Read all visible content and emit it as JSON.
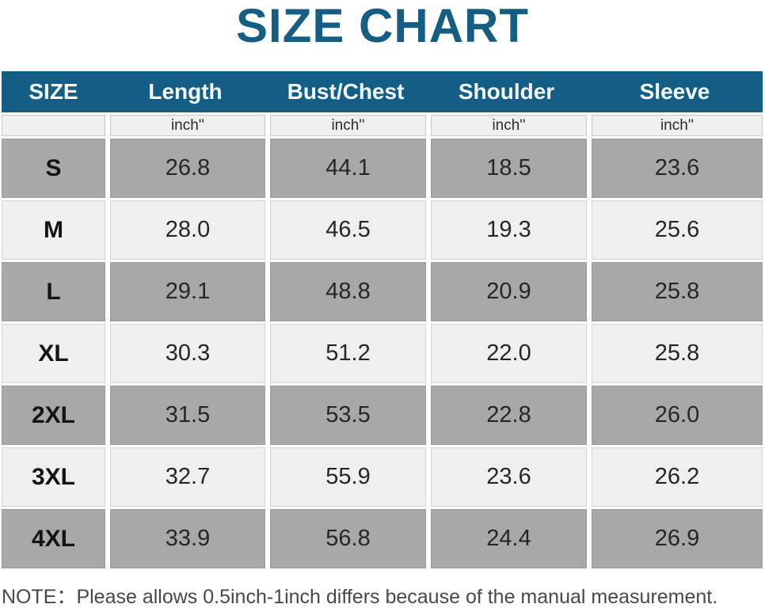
{
  "title": "SIZE CHART",
  "table": {
    "columns": [
      "SIZE",
      "Length",
      "Bust/Chest",
      "Shoulder",
      "Sleeve"
    ],
    "unit_row": [
      "",
      "inch''",
      "inch''",
      "inch''",
      "inch''"
    ],
    "rows": [
      {
        "size": "S",
        "length": "26.8",
        "bust": "44.1",
        "shoulder": "18.5",
        "sleeve": "23.6"
      },
      {
        "size": "M",
        "length": "28.0",
        "bust": "46.5",
        "shoulder": "19.3",
        "sleeve": "25.6"
      },
      {
        "size": "L",
        "length": "29.1",
        "bust": "48.8",
        "shoulder": "20.9",
        "sleeve": "25.8"
      },
      {
        "size": "XL",
        "length": "30.3",
        "bust": "51.2",
        "shoulder": "22.0",
        "sleeve": "25.8"
      },
      {
        "size": "2XL",
        "length": "31.5",
        "bust": "53.5",
        "shoulder": "22.8",
        "sleeve": "26.0"
      },
      {
        "size": "3XL",
        "length": "32.7",
        "bust": "55.9",
        "shoulder": "23.6",
        "sleeve": "26.2"
      },
      {
        "size": "4XL",
        "length": "33.9",
        "bust": "56.8",
        "shoulder": "24.4",
        "sleeve": "26.9"
      }
    ]
  },
  "note": "NOTE：Please allows 0.5inch-1inch differs because of the manual measurement.",
  "colors": {
    "header_blue": "#145e86",
    "title_blue": "#165d83",
    "row_gray": "#a8a8a8",
    "row_light": "#efefef",
    "unit_bg": "#efeff0"
  },
  "chart_data": {
    "type": "table",
    "title": "SIZE CHART",
    "columns": [
      "SIZE",
      "Length",
      "Bust/Chest",
      "Shoulder",
      "Sleeve"
    ],
    "unit": "inch''",
    "rows": [
      [
        "S",
        26.8,
        44.1,
        18.5,
        23.6
      ],
      [
        "M",
        28.0,
        46.5,
        19.3,
        25.6
      ],
      [
        "L",
        29.1,
        48.8,
        20.9,
        25.8
      ],
      [
        "XL",
        30.3,
        51.2,
        22.0,
        25.8
      ],
      [
        "2XL",
        31.5,
        53.5,
        22.8,
        26.0
      ],
      [
        "3XL",
        32.7,
        55.9,
        23.6,
        26.2
      ],
      [
        "4XL",
        33.9,
        56.8,
        24.4,
        26.9
      ]
    ],
    "note": "NOTE：Please allows 0.5inch-1inch differs because of the manual measurement."
  }
}
